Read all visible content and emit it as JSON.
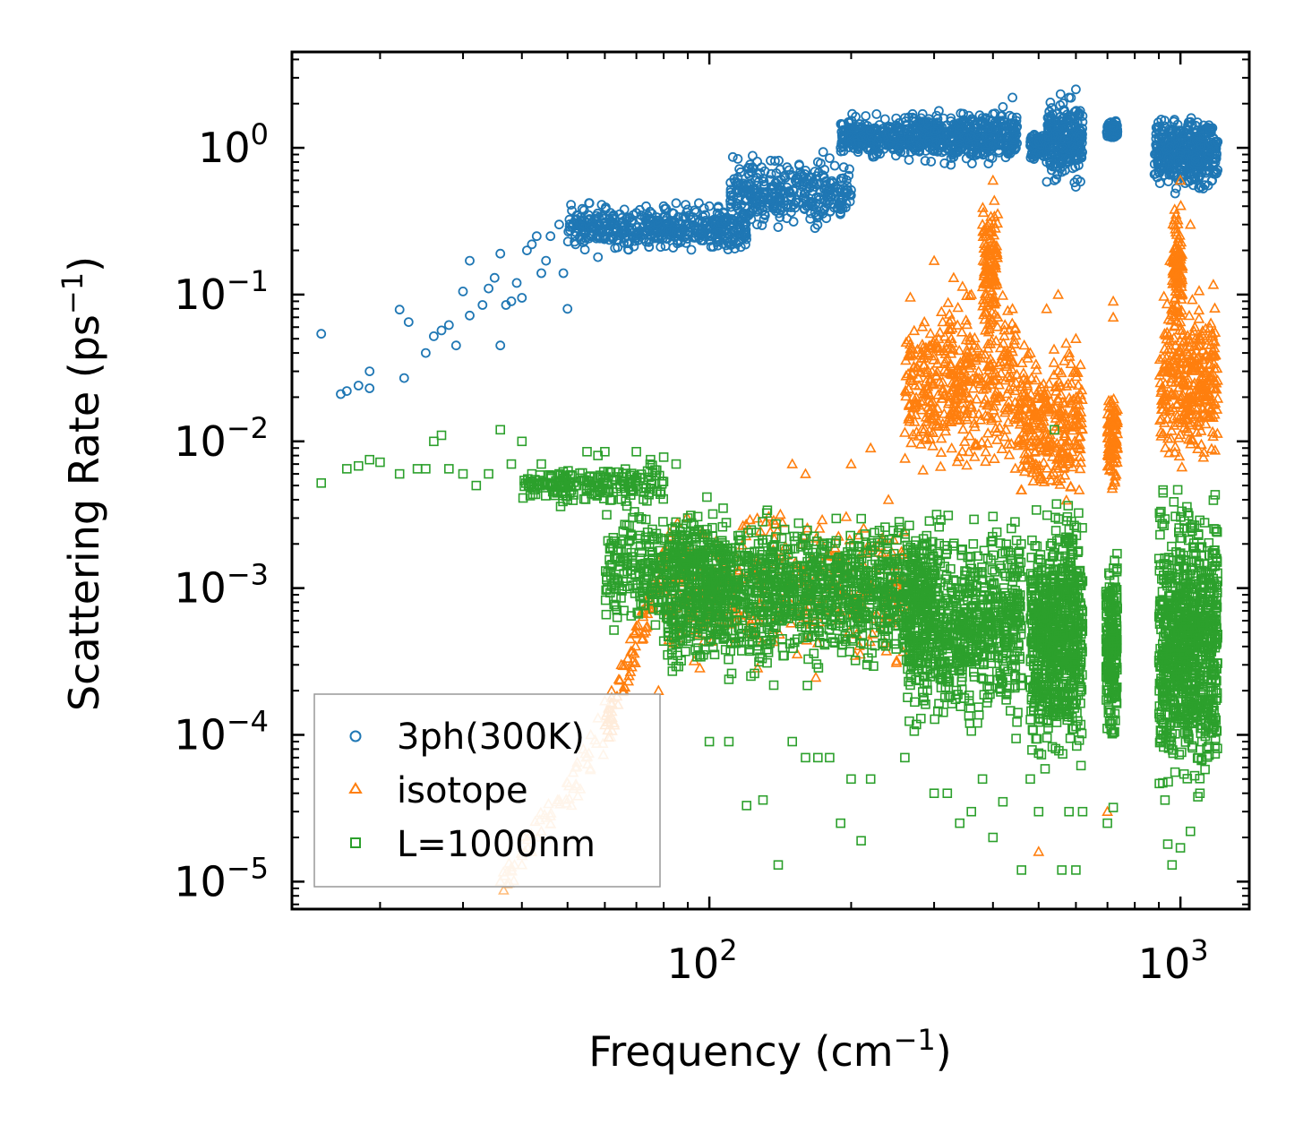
{
  "chart_data": {
    "type": "scatter",
    "xscale": "log",
    "yscale": "log",
    "xlim": [
      13,
      1400
    ],
    "ylim": [
      6.5e-06,
      4.5
    ],
    "xlabel": {
      "base": "Frequency (cm",
      "sup": "−1",
      "end": ")"
    },
    "ylabel": {
      "base": "Scattering Rate (ps",
      "sup": "−1",
      "end": ")"
    },
    "x_ticks": [
      {
        "value": 100,
        "base": "10",
        "exp": "2"
      },
      {
        "value": 1000,
        "base": "10",
        "exp": "3"
      }
    ],
    "y_ticks": [
      {
        "value": 1,
        "base": "10",
        "exp": "0"
      },
      {
        "value": 0.1,
        "base": "10",
        "exp": "−1"
      },
      {
        "value": 0.01,
        "base": "10",
        "exp": "−2"
      },
      {
        "value": 0.001,
        "base": "10",
        "exp": "−3"
      },
      {
        "value": 0.0001,
        "base": "10",
        "exp": "−4"
      },
      {
        "value": 1e-05,
        "base": "10",
        "exp": "−5"
      }
    ],
    "legend": {
      "placement": "lower-left"
    },
    "series": [
      {
        "name": "3ph(300K)",
        "marker": "circle",
        "color": "#1f77b4",
        "points": [
          [
            15,
            0.054
          ],
          [
            16.5,
            0.021
          ],
          [
            17,
            0.022
          ],
          [
            18,
            0.024
          ],
          [
            19,
            0.023
          ],
          [
            19,
            0.03
          ],
          [
            22,
            0.079
          ],
          [
            22.5,
            0.027
          ],
          [
            23,
            0.065
          ],
          [
            25,
            0.04
          ],
          [
            26,
            0.052
          ],
          [
            27,
            0.057
          ],
          [
            28,
            0.062
          ],
          [
            29,
            0.045
          ],
          [
            30,
            0.105
          ],
          [
            31,
            0.072
          ],
          [
            31,
            0.17
          ],
          [
            33,
            0.085
          ],
          [
            34,
            0.11
          ],
          [
            35,
            0.13
          ],
          [
            36,
            0.19
          ],
          [
            36,
            0.045
          ],
          [
            37,
            0.085
          ],
          [
            38,
            0.09
          ],
          [
            39,
            0.12
          ],
          [
            40,
            0.095
          ],
          [
            41,
            0.2
          ],
          [
            42,
            0.22
          ],
          [
            43,
            0.25
          ],
          [
            44,
            0.14
          ],
          [
            45,
            0.17
          ],
          [
            46,
            0.25
          ],
          [
            48,
            0.3
          ],
          [
            49,
            0.14
          ],
          [
            50,
            0.08
          ],
          [
            52,
            0.22
          ],
          [
            54,
            0.3
          ],
          [
            56,
            0.25
          ],
          [
            58,
            0.18
          ],
          [
            60,
            0.33
          ],
          [
            63,
            0.28
          ],
          [
            66,
            0.38
          ],
          [
            70,
            0.36
          ],
          [
            75,
            0.3
          ],
          [
            80,
            0.4
          ],
          [
            85,
            0.42
          ],
          [
            90,
            0.38
          ],
          [
            95,
            0.42
          ],
          [
            100,
            0.4
          ],
          [
            105,
            0.35
          ],
          [
            110,
            0.32
          ],
          [
            115,
            0.3
          ],
          [
            120,
            0.55
          ],
          [
            130,
            0.5
          ],
          [
            140,
            0.6
          ],
          [
            150,
            0.65
          ],
          [
            160,
            0.7
          ],
          [
            170,
            0.8
          ],
          [
            180,
            0.85
          ],
          [
            190,
            1.0
          ],
          [
            200,
            1.1
          ],
          [
            210,
            1.2
          ],
          [
            220,
            1.3
          ],
          [
            240,
            1.4
          ],
          [
            260,
            1.6
          ],
          [
            270,
            1.7
          ],
          [
            280,
            1.5
          ],
          [
            300,
            1.3
          ],
          [
            320,
            1.2
          ],
          [
            340,
            1.1
          ],
          [
            350,
            1.4
          ],
          [
            360,
            1.2
          ],
          [
            380,
            1.6
          ],
          [
            400,
            1.7
          ],
          [
            420,
            1.9
          ],
          [
            440,
            2.2
          ],
          [
            500,
            1.1
          ],
          [
            520,
            0.8
          ],
          [
            540,
            0.6
          ],
          [
            560,
            1.5
          ],
          [
            580,
            2.2
          ],
          [
            600,
            2.5
          ],
          [
            620,
            1.5
          ],
          [
            700,
            1.2
          ],
          [
            720,
            1.4
          ],
          [
            900,
            1.4
          ],
          [
            950,
            1.0
          ],
          [
            1000,
            0.7
          ],
          [
            1050,
            1.5
          ],
          [
            1100,
            1.2
          ],
          [
            1150,
            0.9
          ],
          [
            1200,
            1.1
          ]
        ],
        "bands": [
          {
            "x": [
              50,
              120
            ],
            "ymin": 0.18,
            "ymax": 0.45,
            "count": 450
          },
          {
            "x": [
              110,
              200
            ],
            "ymin": 0.25,
            "ymax": 1.0,
            "count": 320
          },
          {
            "x": [
              190,
              290
            ],
            "ymin": 0.8,
            "ymax": 1.8,
            "count": 300
          },
          {
            "x": [
              280,
              450
            ],
            "ymin": 0.7,
            "ymax": 2.0,
            "count": 400
          },
          {
            "x": [
              480,
              520
            ],
            "ymin": 0.8,
            "ymax": 1.3,
            "count": 80
          },
          {
            "x": [
              520,
              620
            ],
            "ymin": 0.5,
            "ymax": 2.5,
            "count": 260
          },
          {
            "x": [
              695,
              735
            ],
            "ymin": 1.1,
            "ymax": 1.6,
            "count": 90
          },
          {
            "x": [
              880,
              1200
            ],
            "ymin": 0.45,
            "ymax": 1.9,
            "count": 420
          }
        ]
      },
      {
        "name": "isotope",
        "marker": "triangle",
        "color": "#ff7f0e",
        "light_color": "#ffbb78",
        "points": [
          [
            36,
            1e-05
          ],
          [
            38,
            1.2e-05
          ],
          [
            40,
            1.3e-05
          ],
          [
            42,
            1.6e-05
          ],
          [
            44,
            2.2e-05
          ],
          [
            46,
            2.8e-05
          ],
          [
            48,
            3.6e-05
          ],
          [
            50,
            4.7e-05
          ],
          [
            52,
            6e-05
          ],
          [
            54,
            8e-05
          ],
          [
            56,
            0.0001
          ],
          [
            58,
            0.00013
          ],
          [
            60,
            0.00017
          ],
          [
            62,
            0.0002
          ],
          [
            65,
            0.0003
          ],
          [
            68,
            0.00045
          ],
          [
            70,
            0.00055
          ],
          [
            72,
            0.0007
          ],
          [
            75,
            0.001
          ],
          [
            78,
            0.0002
          ],
          [
            80,
            0.0014
          ],
          [
            150,
            0.007
          ],
          [
            160,
            0.006
          ],
          [
            200,
            0.007
          ],
          [
            220,
            0.009
          ],
          [
            240,
            0.004
          ],
          [
            300,
            0.17
          ],
          [
            330,
            0.13
          ],
          [
            360,
            0.1
          ],
          [
            380,
            0.3
          ],
          [
            400,
            0.6
          ],
          [
            440,
            0.08
          ],
          [
            480,
            0.04
          ],
          [
            500,
            1.6e-05
          ],
          [
            520,
            0.08
          ],
          [
            550,
            0.1
          ],
          [
            580,
            0.04
          ],
          [
            600,
            0.05
          ],
          [
            700,
            3e-05
          ],
          [
            720,
            0.09
          ],
          [
            720,
            0.07
          ],
          [
            950,
            0.17
          ],
          [
            1000,
            0.6
          ],
          [
            1050,
            0.3
          ],
          [
            1100,
            0.05
          ]
        ],
        "bands": [
          {
            "x": [
              36,
              62
            ],
            "ymin": 1e-05,
            "ymax": 0.0001,
            "count": 60,
            "diag": true,
            "light": true
          },
          {
            "x": [
              60,
              80
            ],
            "ymin": 0.0001,
            "ymax": 0.0014,
            "count": 80,
            "diag": true
          },
          {
            "x": [
              80,
              260
            ],
            "ymin": 0.0002,
            "ymax": 0.005,
            "count": 350
          },
          {
            "x": [
              260,
              450
            ],
            "ymin": 0.004,
            "ymax": 0.15,
            "count": 450
          },
          {
            "x": [
              380,
              410
            ],
            "ymin": 0.05,
            "ymax": 0.55,
            "count": 120
          },
          {
            "x": [
              450,
              620
            ],
            "ymin": 0.003,
            "ymax": 0.06,
            "count": 300
          },
          {
            "x": [
              700,
              735
            ],
            "ymin": 0.004,
            "ymax": 0.03,
            "count": 100
          },
          {
            "x": [
              900,
              1200
            ],
            "ymin": 0.005,
            "ymax": 0.15,
            "count": 350
          },
          {
            "x": [
              960,
              1010
            ],
            "ymin": 0.05,
            "ymax": 0.5,
            "count": 100
          }
        ]
      },
      {
        "name": "L=1000nm",
        "marker": "square",
        "color": "#2ca02c",
        "points": [
          [
            15,
            0.0052
          ],
          [
            17,
            0.0065
          ],
          [
            18,
            0.0068
          ],
          [
            19,
            0.0075
          ],
          [
            20,
            0.0072
          ],
          [
            22,
            0.006
          ],
          [
            24,
            0.0065
          ],
          [
            25,
            0.0065
          ],
          [
            26,
            0.01
          ],
          [
            27,
            0.011
          ],
          [
            28,
            0.0065
          ],
          [
            30,
            0.006
          ],
          [
            32,
            0.005
          ],
          [
            34,
            0.006
          ],
          [
            36,
            0.012
          ],
          [
            38,
            0.007
          ],
          [
            40,
            0.01
          ],
          [
            42,
            0.006
          ],
          [
            44,
            0.007
          ],
          [
            46,
            0.005
          ],
          [
            48,
            0.006
          ],
          [
            50,
            0.004
          ],
          [
            52,
            0.005
          ],
          [
            55,
            0.0085
          ],
          [
            58,
            0.008
          ],
          [
            60,
            0.0085
          ],
          [
            62,
            0.004
          ],
          [
            65,
            0.002
          ],
          [
            70,
            0.0085
          ],
          [
            75,
            0.0075
          ],
          [
            80,
            0.0078
          ],
          [
            85,
            0.007
          ],
          [
            90,
            0.003
          ],
          [
            95,
            0.0025
          ],
          [
            100,
            9e-05
          ],
          [
            110,
            9e-05
          ],
          [
            120,
            3.3e-05
          ],
          [
            130,
            3.6e-05
          ],
          [
            140,
            1.3e-05
          ],
          [
            150,
            9e-05
          ],
          [
            160,
            7e-05
          ],
          [
            170,
            7e-05
          ],
          [
            180,
            7e-05
          ],
          [
            190,
            2.5e-05
          ],
          [
            200,
            5e-05
          ],
          [
            210,
            1.9e-05
          ],
          [
            220,
            5e-05
          ],
          [
            260,
            7e-05
          ],
          [
            300,
            4e-05
          ],
          [
            320,
            4e-05
          ],
          [
            340,
            2.5e-05
          ],
          [
            360,
            3e-05
          ],
          [
            380,
            5e-05
          ],
          [
            400,
            2e-05
          ],
          [
            420,
            3.5e-05
          ],
          [
            460,
            1.2e-05
          ],
          [
            480,
            5e-05
          ],
          [
            500,
            3e-05
          ],
          [
            540,
            0.012
          ],
          [
            560,
            1.2e-05
          ],
          [
            580,
            3e-05
          ],
          [
            600,
            1.2e-05
          ],
          [
            620,
            3e-05
          ],
          [
            700,
            2.5e-05
          ],
          [
            720,
            3.2e-05
          ],
          [
            940,
            1.8e-05
          ],
          [
            960,
            1.3e-05
          ],
          [
            1000,
            1.7e-05
          ],
          [
            1050,
            2.2e-05
          ],
          [
            1100,
            4e-05
          ]
        ],
        "bands": [
          {
            "x": [
              40,
              80
            ],
            "ymin": 0.0035,
            "ymax": 0.0075,
            "count": 200
          },
          {
            "x": [
              60,
              110
            ],
            "ymin": 0.0004,
            "ymax": 0.005,
            "count": 350
          },
          {
            "x": [
              80,
              300
            ],
            "ymin": 0.0002,
            "ymax": 0.004,
            "count": 1300
          },
          {
            "x": [
              260,
              460
            ],
            "ymin": 8e-05,
            "ymax": 0.004,
            "count": 750
          },
          {
            "x": [
              480,
              620
            ],
            "ymin": 5e-05,
            "ymax": 0.005,
            "count": 750
          },
          {
            "x": [
              695,
              735
            ],
            "ymin": 7e-05,
            "ymax": 0.002,
            "count": 220
          },
          {
            "x": [
              900,
              1200
            ],
            "ymin": 3e-05,
            "ymax": 0.006,
            "count": 900
          }
        ]
      }
    ]
  }
}
